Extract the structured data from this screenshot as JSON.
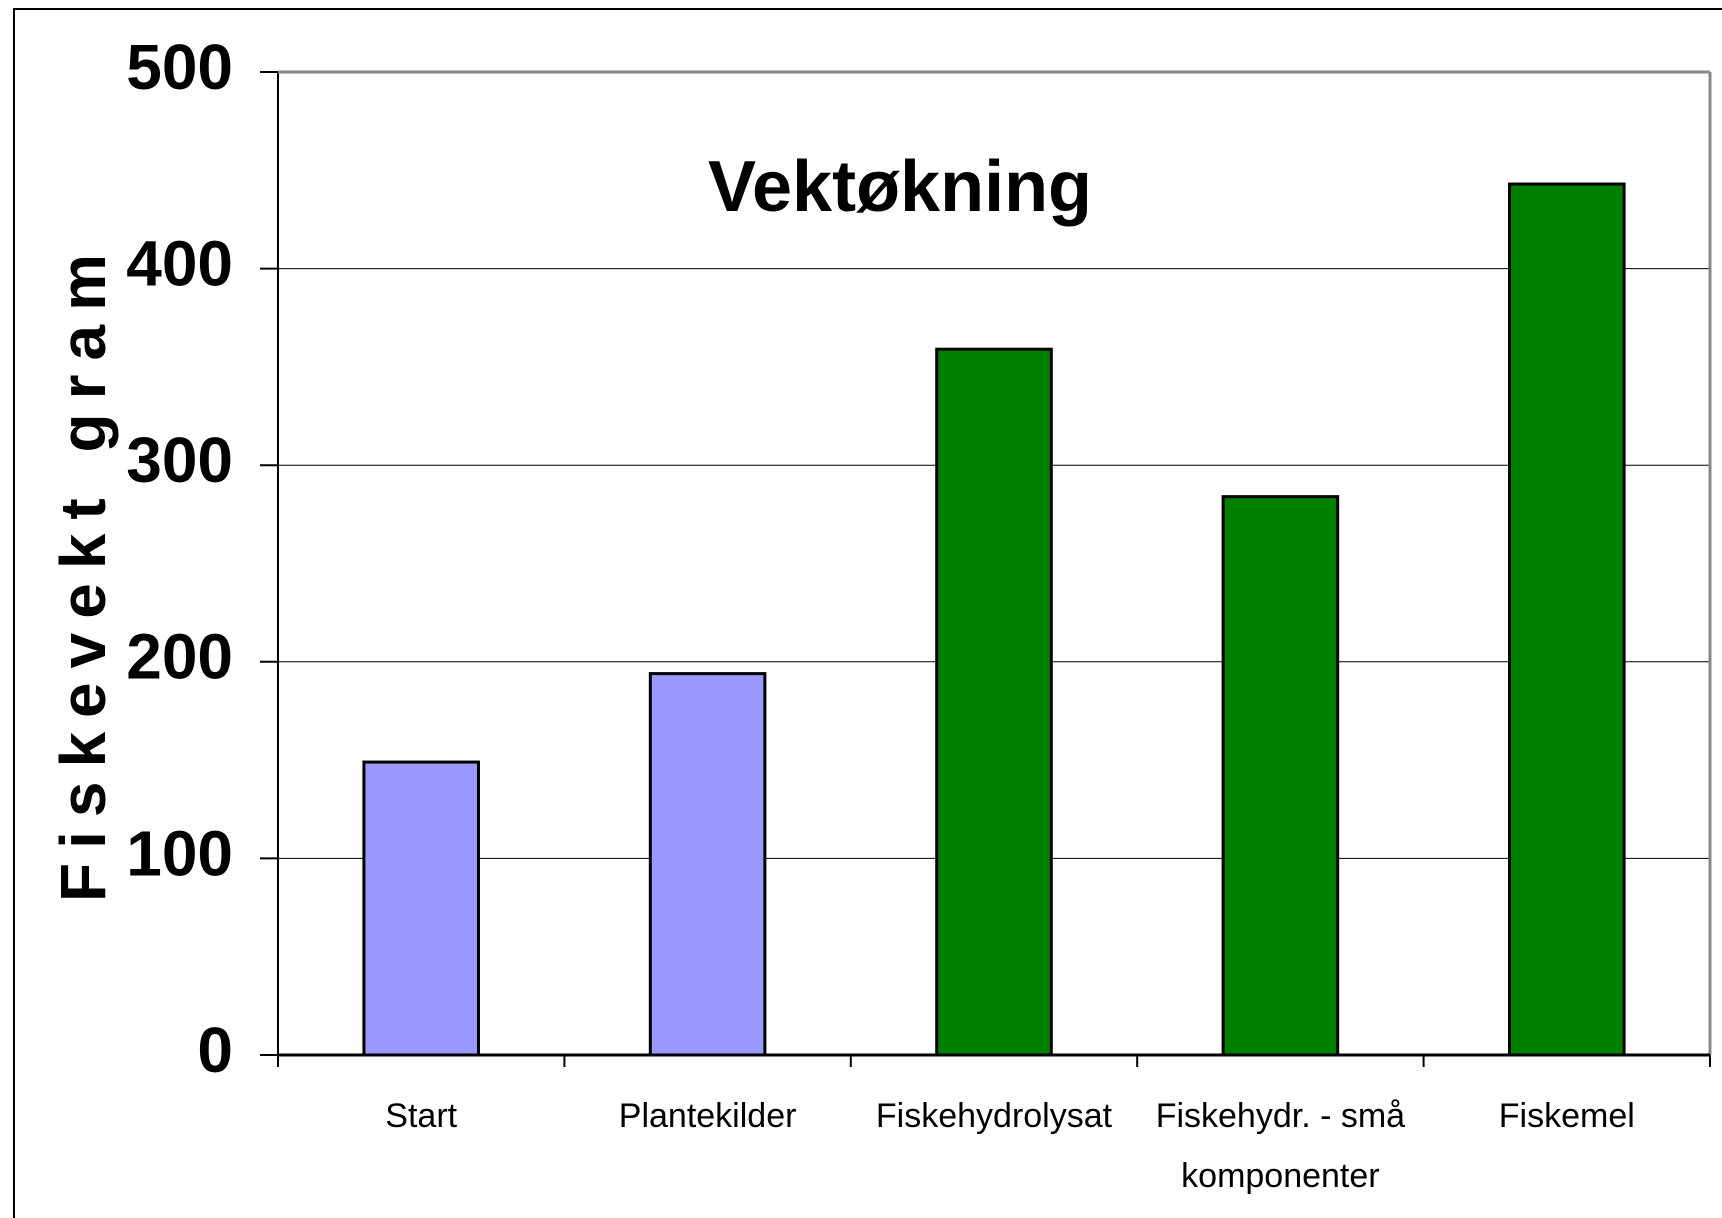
{
  "chart_data": {
    "type": "bar",
    "title": "Vektøkning",
    "y_label": "Fiskevekt gram",
    "categories": [
      "Start",
      "Plantekilder",
      "Fiskehydrolysat",
      "Fiskehydr. - små komponenter",
      "Fiskemel"
    ],
    "values": [
      149,
      194,
      359,
      284,
      443
    ],
    "colors": [
      "#9999ff",
      "#9999ff",
      "#008000",
      "#008000",
      "#008000"
    ],
    "ylim": [
      0,
      500
    ],
    "yticks": [
      0,
      100,
      200,
      300,
      400,
      500
    ],
    "grid": true
  }
}
